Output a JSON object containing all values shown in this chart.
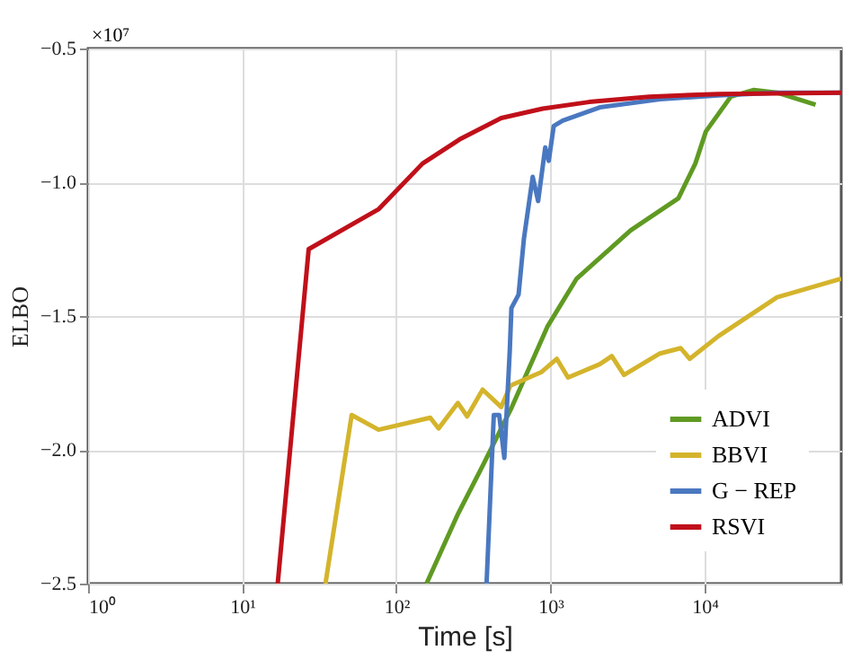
{
  "chart_data": {
    "type": "line",
    "xlabel": "Time [s]",
    "ylabel": "ELBO",
    "log": "x",
    "grid": true,
    "legend": "bottom right",
    "line_style": "solid",
    "marker": "none",
    "xlim": [
      1,
      77000
    ],
    "xticks": [
      {
        "value": 1,
        "label": "10⁰"
      },
      {
        "value": 10,
        "label": "10¹"
      },
      {
        "value": 100,
        "label": "10²"
      },
      {
        "value": 1000,
        "label": "10³"
      },
      {
        "value": 10000,
        "label": "10⁴"
      }
    ],
    "ylim": [
      -2.5,
      -0.5
    ],
    "yticks": [
      {
        "value": -2.5,
        "label": "−2.5"
      },
      {
        "value": -2.0,
        "label": "−2.0"
      },
      {
        "value": -1.5,
        "label": "−1.5"
      },
      {
        "value": -1.0,
        "label": "−1.0"
      },
      {
        "value": -0.5,
        "label": "−0.5"
      }
    ],
    "annotations": [
      "×10⁷"
    ],
    "series": [
      {
        "name": "ADVI",
        "color": "#5f9a22",
        "x": [
          157,
          251,
          363,
          562,
          955,
          1480,
          3310,
          6760,
          8710,
          10200,
          14800,
          20900,
          29500,
          52500
        ],
        "values": [
          -2.5,
          -2.24,
          -2.06,
          -1.84,
          -1.54,
          -1.36,
          -1.18,
          -1.06,
          -0.93,
          -0.81,
          -0.68,
          -0.655,
          -0.665,
          -0.71
        ]
      },
      {
        "name": "BBVI",
        "color": "#d4b42c",
        "x": [
          34.7,
          51.3,
          76.7,
          166,
          188,
          251,
          288,
          363,
          479,
          550,
          871,
          1100,
          1300,
          2090,
          2500,
          3000,
          5130,
          7000,
          8000,
          12300,
          29500,
          77000
        ],
        "values": [
          -2.5,
          -1.87,
          -1.925,
          -1.88,
          -1.92,
          -1.825,
          -1.875,
          -1.775,
          -1.84,
          -1.76,
          -1.71,
          -1.66,
          -1.73,
          -1.68,
          -1.65,
          -1.72,
          -1.64,
          -1.62,
          -1.66,
          -1.575,
          -1.43,
          -1.36
        ]
      },
      {
        "name": "G − REP",
        "color": "#4a78c0",
        "x": [
          385,
          429,
          465,
          502,
          545,
          558,
          621,
          673,
          767,
          832,
          925,
          975,
          1050,
          1200,
          2090,
          5130,
          12300,
          29500,
          77000
        ],
        "values": [
          -2.5,
          -1.87,
          -1.87,
          -2.03,
          -1.625,
          -1.47,
          -1.42,
          -1.21,
          -0.98,
          -1.07,
          -0.87,
          -0.92,
          -0.79,
          -0.77,
          -0.72,
          -0.69,
          -0.675,
          -0.665,
          -0.665
        ]
      },
      {
        "name": "RSVI",
        "color": "#c0101a",
        "x": [
          17,
          27,
          77,
          148,
          257,
          479,
          891,
          1780,
          4370,
          12300,
          77000
        ],
        "values": [
          -2.5,
          -1.25,
          -1.1,
          -0.93,
          -0.84,
          -0.76,
          -0.725,
          -0.7,
          -0.68,
          -0.67,
          -0.665
        ]
      }
    ]
  }
}
